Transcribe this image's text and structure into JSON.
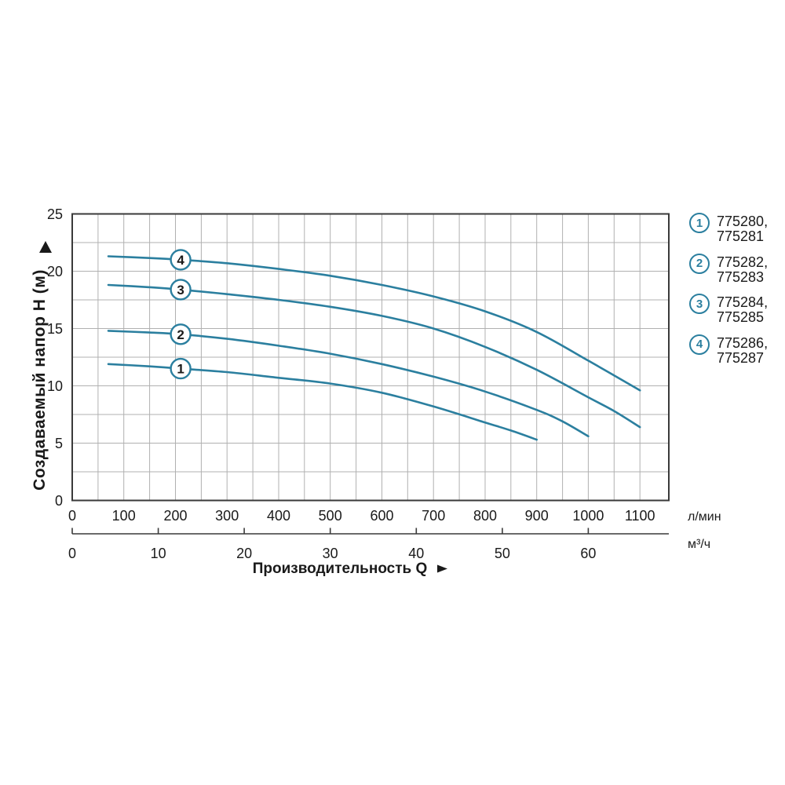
{
  "colors": {
    "curve": "#2b7f9f",
    "grid": "#b0b0b0",
    "axis": "#3a3a3a",
    "text": "#1a1a1a",
    "badge_fill": "#ffffff",
    "background": "#ffffff"
  },
  "y_axis": {
    "title": "Создаваемый напор H (м)",
    "arrow": "▲",
    "range": [
      0,
      25
    ],
    "ticks": [
      0,
      5,
      10,
      15,
      20,
      25
    ],
    "minor_step": 2.5
  },
  "x_axis_lmin": {
    "unit": "л/мин",
    "range": [
      0,
      1156
    ],
    "ticks": [
      0,
      100,
      200,
      300,
      400,
      500,
      600,
      700,
      800,
      900,
      1000,
      1100
    ],
    "minor_step": 50
  },
  "x_axis_m3h": {
    "unit": "м³/ч",
    "ticks": [
      0,
      10,
      20,
      30,
      40,
      50,
      60
    ],
    "lmin_per_unit": 16.6667
  },
  "x_title": {
    "text": "Производительность Q",
    "arrow": "►"
  },
  "legend": {
    "items": [
      {
        "num": "1",
        "line1": "775280,",
        "line2": "775281"
      },
      {
        "num": "2",
        "line1": "775282,",
        "line2": "775283"
      },
      {
        "num": "3",
        "line1": "775284,",
        "line2": "775285"
      },
      {
        "num": "4",
        "line1": "775286,",
        "line2": "775287"
      }
    ]
  },
  "chart_data": {
    "type": "line",
    "title": "",
    "xlabel": "Производительность Q",
    "ylabel": "Создаваемый напор H (м)",
    "x_unit_primary": "л/мин",
    "x_unit_secondary": "м³/ч",
    "xlim_lmin": [
      0,
      1156
    ],
    "ylim_m": [
      0,
      25
    ],
    "grid": true,
    "legend_position": "right",
    "badge_x_lmin": 210,
    "series": [
      {
        "id": "1",
        "articles": [
          "775280",
          "775281"
        ],
        "points": [
          [
            70,
            11.9
          ],
          [
            150,
            11.7
          ],
          [
            210,
            11.5
          ],
          [
            300,
            11.2
          ],
          [
            400,
            10.7
          ],
          [
            500,
            10.2
          ],
          [
            600,
            9.4
          ],
          [
            700,
            8.2
          ],
          [
            800,
            6.8
          ],
          [
            850,
            6.1
          ],
          [
            900,
            5.3
          ]
        ]
      },
      {
        "id": "2",
        "articles": [
          "775282",
          "775283"
        ],
        "points": [
          [
            70,
            14.8
          ],
          [
            150,
            14.65
          ],
          [
            210,
            14.5
          ],
          [
            300,
            14.1
          ],
          [
            400,
            13.5
          ],
          [
            500,
            12.8
          ],
          [
            600,
            11.9
          ],
          [
            700,
            10.8
          ],
          [
            800,
            9.5
          ],
          [
            900,
            7.9
          ],
          [
            950,
            6.9
          ],
          [
            1000,
            5.6
          ]
        ]
      },
      {
        "id": "3",
        "articles": [
          "775284",
          "775285"
        ],
        "points": [
          [
            70,
            18.8
          ],
          [
            150,
            18.6
          ],
          [
            210,
            18.4
          ],
          [
            300,
            18.0
          ],
          [
            400,
            17.5
          ],
          [
            500,
            16.9
          ],
          [
            600,
            16.1
          ],
          [
            700,
            15.0
          ],
          [
            800,
            13.4
          ],
          [
            900,
            11.4
          ],
          [
            1000,
            9.0
          ],
          [
            1050,
            7.8
          ],
          [
            1100,
            6.4
          ]
        ]
      },
      {
        "id": "4",
        "articles": [
          "775286",
          "775287"
        ],
        "points": [
          [
            70,
            21.3
          ],
          [
            150,
            21.15
          ],
          [
            210,
            21.0
          ],
          [
            300,
            20.7
          ],
          [
            400,
            20.2
          ],
          [
            500,
            19.6
          ],
          [
            600,
            18.8
          ],
          [
            700,
            17.8
          ],
          [
            800,
            16.5
          ],
          [
            900,
            14.7
          ],
          [
            1000,
            12.2
          ],
          [
            1100,
            9.6
          ]
        ]
      }
    ]
  }
}
